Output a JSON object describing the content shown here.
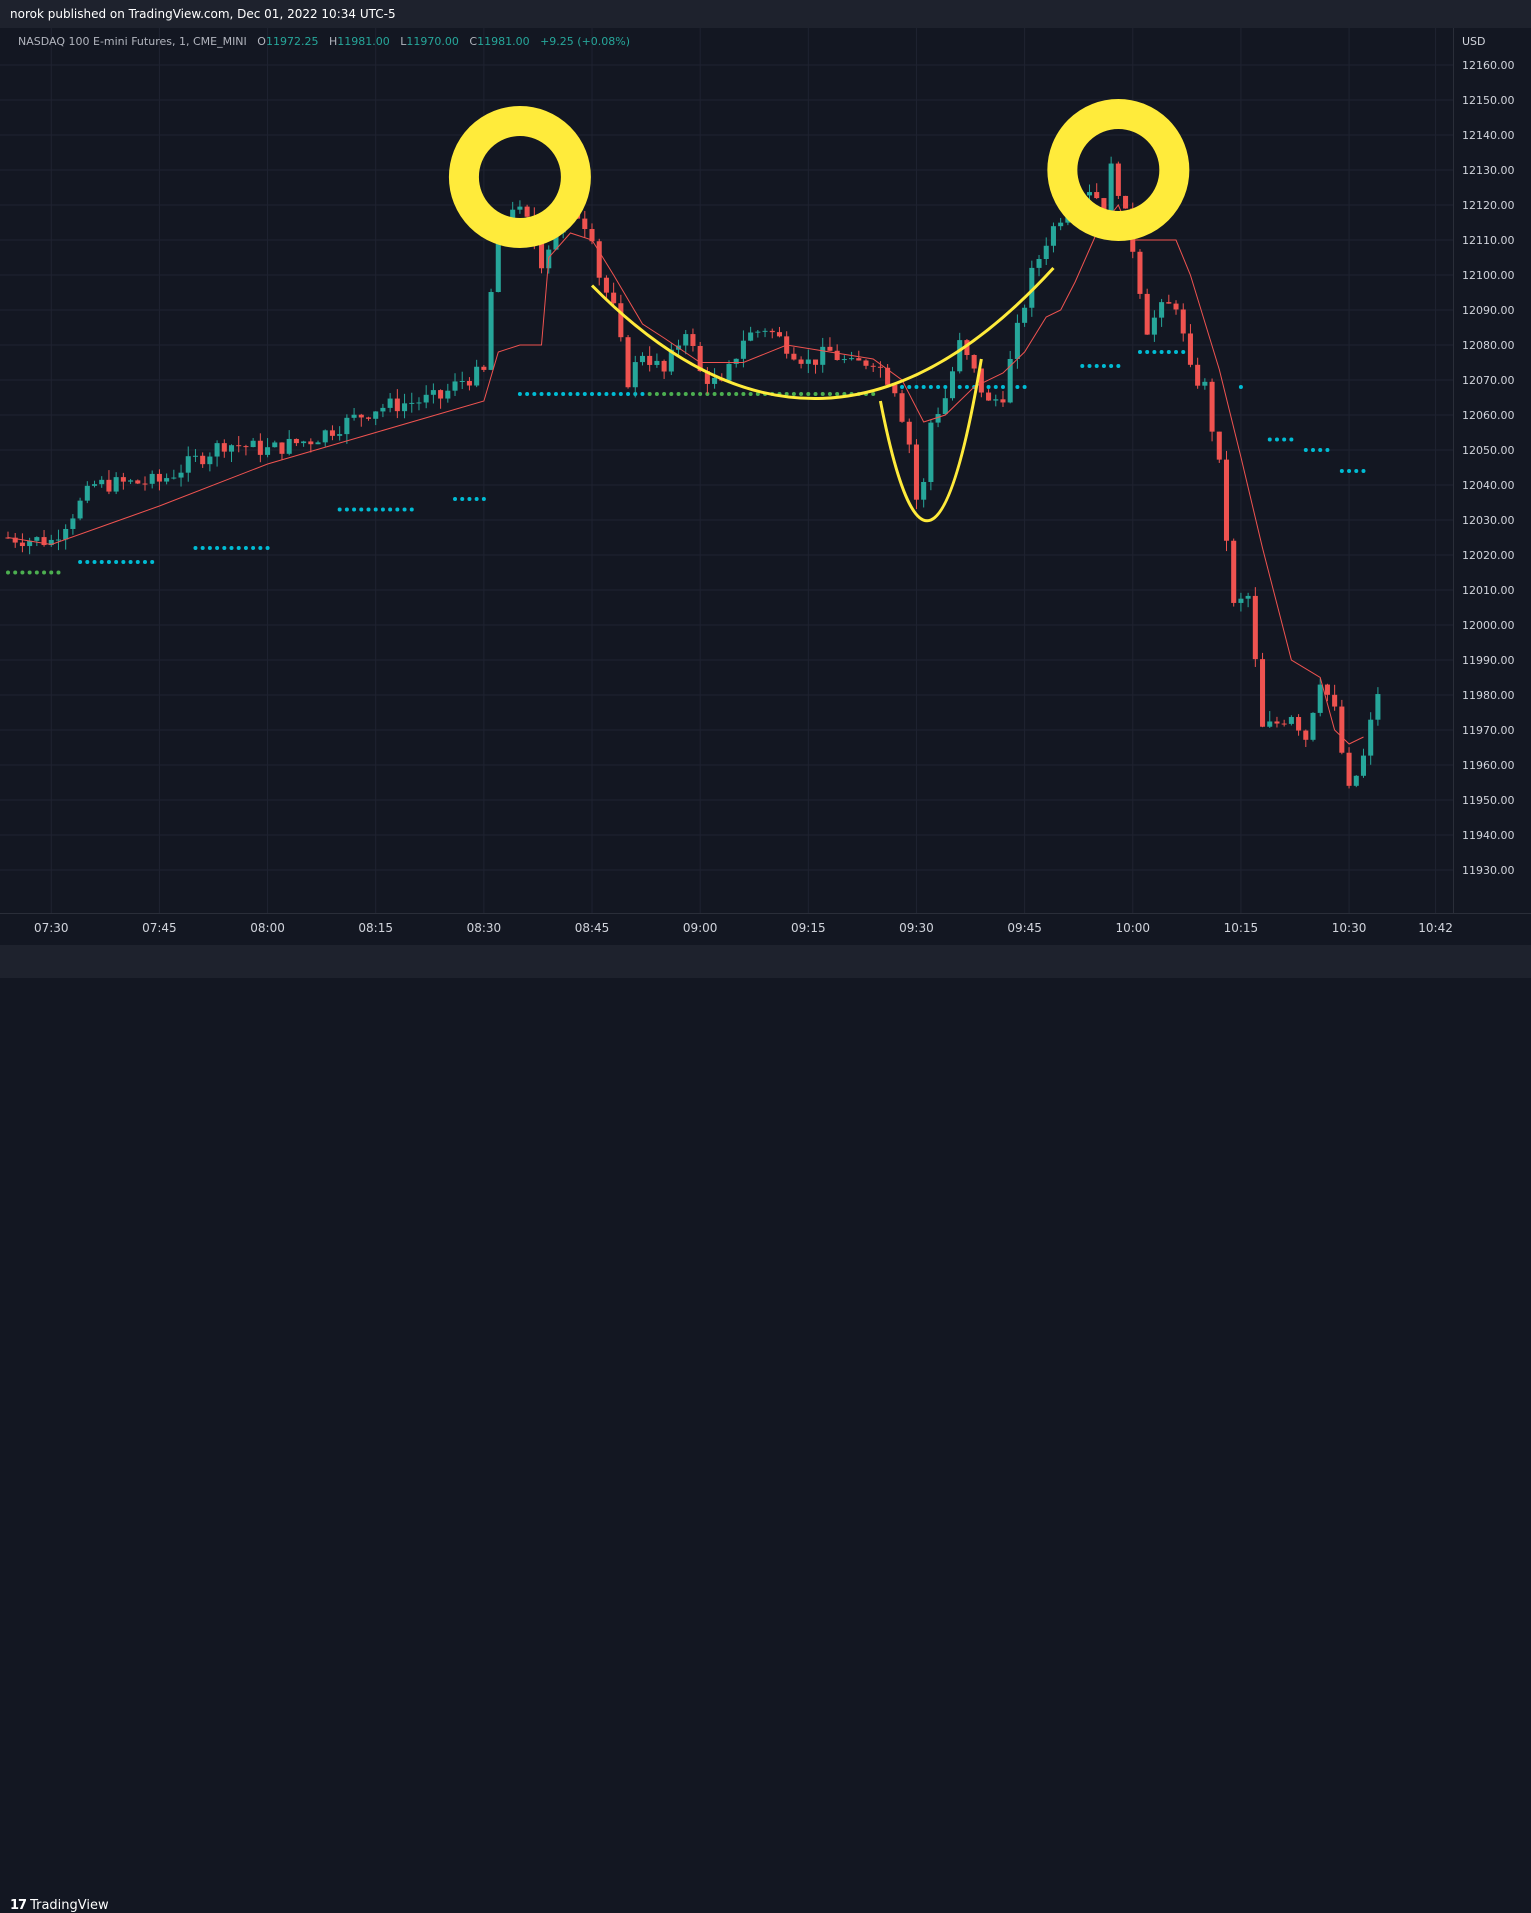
{
  "header": {
    "published": "norok published on TradingView.com, Dec 01, 2022 10:34 UTC-5"
  },
  "legend": {
    "symbol": "NASDAQ 100 E-mini Futures, 1, CME_MINI",
    "open_label": "O",
    "open": "11972.25",
    "high_label": "H",
    "high": "11981.00",
    "low_label": "L",
    "low": "11970.00",
    "close_label": "C",
    "close": "11981.00",
    "change": "+9.25 (+0.08%)"
  },
  "price_axis": {
    "currency": "USD"
  },
  "footer": {
    "brand": "TradingView",
    "logo": "tradingview-logo-icon"
  },
  "colors": {
    "background": "#131722",
    "up": "#26a69a",
    "down": "#ef5350",
    "ma_line": "#ef5350",
    "annotation": "#ffeb3b",
    "cyan_dots": "#00bcd4",
    "green_dots": "#4caf50",
    "grid": "#1f2331"
  },
  "chart_data": {
    "type": "candlestick",
    "title": "NASDAQ 100 E-mini Futures, 1, CME_MINI",
    "interval": "1 minute",
    "ylim": [
      11920,
      12166
    ],
    "xlim": [
      "07:24",
      "10:44"
    ],
    "y_ticks": [
      "12160.00",
      "12150.00",
      "12140.00",
      "12130.00",
      "12120.00",
      "12110.00",
      "12100.00",
      "12090.00",
      "12080.00",
      "12070.00",
      "12060.00",
      "12050.00",
      "12040.00",
      "12030.00",
      "12020.00",
      "12010.00",
      "12000.00",
      "11990.00",
      "11980.00",
      "11970.00",
      "11960.00",
      "11950.00",
      "11940.00",
      "11930.00"
    ],
    "x_ticks": [
      "07:30",
      "07:45",
      "08:00",
      "08:15",
      "08:30",
      "08:45",
      "09:00",
      "09:15",
      "09:30",
      "09:45",
      "10:00",
      "10:15",
      "10:30",
      "10:42"
    ],
    "grid": true,
    "close_path": [
      [
        "07:24",
        12025
      ],
      [
        "07:30",
        12024
      ],
      [
        "07:36",
        12040
      ],
      [
        "07:45",
        12041
      ],
      [
        "07:54",
        12052
      ],
      [
        "08:00",
        12050
      ],
      [
        "08:06",
        12053
      ],
      [
        "08:15",
        12062
      ],
      [
        "08:24",
        12065
      ],
      [
        "08:27",
        12070
      ],
      [
        "08:30",
        12072
      ],
      [
        "08:31",
        12095
      ],
      [
        "08:32",
        12112
      ],
      [
        "08:34",
        12120
      ],
      [
        "08:36",
        12115
      ],
      [
        "08:38",
        12104
      ],
      [
        "08:40",
        12113
      ],
      [
        "08:42",
        12120
      ],
      [
        "08:44",
        12115
      ],
      [
        "08:45",
        12112
      ],
      [
        "08:46",
        12100
      ],
      [
        "08:48",
        12090
      ],
      [
        "08:50",
        12070
      ],
      [
        "08:52",
        12078
      ],
      [
        "08:55",
        12072
      ],
      [
        "08:58",
        12085
      ],
      [
        "09:00",
        12072
      ],
      [
        "09:03",
        12068
      ],
      [
        "09:06",
        12082
      ],
      [
        "09:09",
        12085
      ],
      [
        "09:12",
        12080
      ],
      [
        "09:15",
        12075
      ],
      [
        "09:18",
        12078
      ],
      [
        "09:21",
        12074
      ],
      [
        "09:24",
        12076
      ],
      [
        "09:27",
        12068
      ],
      [
        "09:29",
        12052
      ],
      [
        "09:30",
        12036
      ],
      [
        "09:31",
        12040
      ],
      [
        "09:32",
        12058
      ],
      [
        "09:34",
        12065
      ],
      [
        "09:36",
        12080
      ],
      [
        "09:38",
        12072
      ],
      [
        "09:40",
        12063
      ],
      [
        "09:42",
        12066
      ],
      [
        "09:44",
        12084
      ],
      [
        "09:46",
        12100
      ],
      [
        "09:48",
        12110
      ],
      [
        "09:50",
        12117
      ],
      [
        "09:52",
        12123
      ],
      [
        "09:54",
        12125
      ],
      [
        "09:56",
        12120
      ],
      [
        "09:57",
        12130
      ],
      [
        "09:58",
        12125
      ],
      [
        "10:00",
        12108
      ],
      [
        "10:02",
        12085
      ],
      [
        "10:04",
        12090
      ],
      [
        "10:06",
        12092
      ],
      [
        "10:08",
        12072
      ],
      [
        "10:10",
        12068
      ],
      [
        "10:12",
        12045
      ],
      [
        "10:14",
        12005
      ],
      [
        "10:16",
        12008
      ],
      [
        "10:18",
        11970
      ],
      [
        "10:20",
        11972
      ],
      [
        "10:22",
        11975
      ],
      [
        "10:24",
        11968
      ],
      [
        "10:26",
        11985
      ],
      [
        "10:28",
        11975
      ],
      [
        "10:30",
        11952
      ],
      [
        "10:32",
        11962
      ],
      [
        "10:34",
        11981
      ]
    ],
    "ma_path": [
      [
        "07:24",
        12025
      ],
      [
        "07:30",
        12023
      ],
      [
        "07:45",
        12034
      ],
      [
        "08:00",
        12046
      ],
      [
        "08:15",
        12055
      ],
      [
        "08:30",
        12064
      ],
      [
        "08:32",
        12078
      ],
      [
        "08:35",
        12080
      ],
      [
        "08:38",
        12080
      ],
      [
        "08:39",
        12105
      ],
      [
        "08:42",
        12112
      ],
      [
        "08:45",
        12110
      ],
      [
        "08:48",
        12100
      ],
      [
        "08:52",
        12086
      ],
      [
        "08:55",
        12082
      ],
      [
        "09:00",
        12075
      ],
      [
        "09:06",
        12075
      ],
      [
        "09:12",
        12080
      ],
      [
        "09:18",
        12078
      ],
      [
        "09:24",
        12076
      ],
      [
        "09:28",
        12070
      ],
      [
        "09:31",
        12058
      ],
      [
        "09:34",
        12060
      ],
      [
        "09:38",
        12068
      ],
      [
        "09:42",
        12072
      ],
      [
        "09:45",
        12078
      ],
      [
        "09:48",
        12088
      ],
      [
        "09:50",
        12090
      ],
      [
        "09:52",
        12098
      ],
      [
        "09:55",
        12112
      ],
      [
        "09:58",
        12120
      ],
      [
        "10:00",
        12110
      ],
      [
        "10:06",
        12110
      ],
      [
        "10:08",
        12100
      ],
      [
        "10:12",
        12073
      ],
      [
        "10:15",
        12048
      ],
      [
        "10:18",
        12022
      ],
      [
        "10:22",
        11990
      ],
      [
        "10:26",
        11985
      ],
      [
        "10:28",
        11970
      ],
      [
        "10:30",
        11966
      ],
      [
        "10:32",
        11968
      ]
    ],
    "dot_levels": [
      {
        "color": "green",
        "from": "07:24",
        "to": "07:31",
        "value": 12015
      },
      {
        "color": "cyan",
        "from": "07:34",
        "to": "07:44",
        "value": 12018
      },
      {
        "color": "cyan",
        "from": "07:50",
        "to": "08:00",
        "value": 12022
      },
      {
        "color": "cyan",
        "from": "08:10",
        "to": "08:20",
        "value": 12033
      },
      {
        "color": "cyan",
        "from": "08:26",
        "to": "08:30",
        "value": 12036
      },
      {
        "color": "cyan",
        "from": "08:35",
        "to": "08:52",
        "value": 12066
      },
      {
        "color": "green",
        "from": "08:53",
        "to": "09:24",
        "value": 12066
      },
      {
        "color": "cyan",
        "from": "09:27",
        "to": "09:45",
        "value": 12068
      },
      {
        "color": "cyan",
        "from": "09:53",
        "to": "09:58",
        "value": 12074
      },
      {
        "color": "cyan",
        "from": "10:01",
        "to": "10:07",
        "value": 12078
      },
      {
        "color": "cyan",
        "from": "10:15",
        "to": "10:15",
        "value": 12068
      },
      {
        "color": "cyan",
        "from": "10:19",
        "to": "10:22",
        "value": 12053
      },
      {
        "color": "cyan",
        "from": "10:24",
        "to": "10:27",
        "value": 12050
      },
      {
        "color": "cyan",
        "from": "10:29",
        "to": "10:32",
        "value": 12044
      }
    ],
    "annotations": [
      {
        "type": "circle",
        "label": "first top",
        "time": "08:35",
        "value": 12128
      },
      {
        "type": "circle",
        "label": "second top",
        "time": "09:58",
        "value": 12130
      },
      {
        "type": "curve",
        "label": "rounded bottom",
        "from": "08:45",
        "to": "09:49"
      },
      {
        "type": "curve",
        "label": "dip",
        "from": "09:25",
        "to": "09:39"
      }
    ]
  }
}
